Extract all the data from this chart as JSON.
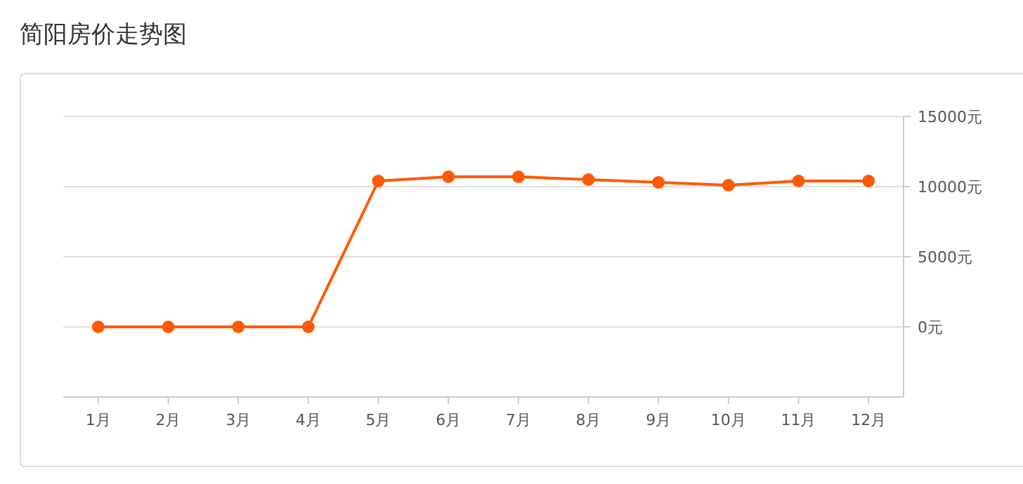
{
  "chart_data": {
    "type": "line",
    "title": "简阳房价走势图",
    "categories": [
      "1月",
      "2月",
      "3月",
      "4月",
      "5月",
      "6月",
      "7月",
      "8月",
      "9月",
      "10月",
      "11月",
      "12月"
    ],
    "series": [
      {
        "color": "#ff5a00",
        "values": [
          0,
          0,
          0,
          0,
          10400,
          10700,
          10700,
          10500,
          10300,
          10100,
          10400,
          10400
        ]
      }
    ],
    "ylim": [
      -5000,
      15000
    ],
    "yticks": [
      {
        "value": 0,
        "label": "0元"
      },
      {
        "value": 5000,
        "label": "5000元"
      },
      {
        "value": 10000,
        "label": "10000元"
      },
      {
        "value": 15000,
        "label": "15000元"
      }
    ],
    "grid": "y",
    "marker": "circle",
    "line_style": "solid"
  }
}
